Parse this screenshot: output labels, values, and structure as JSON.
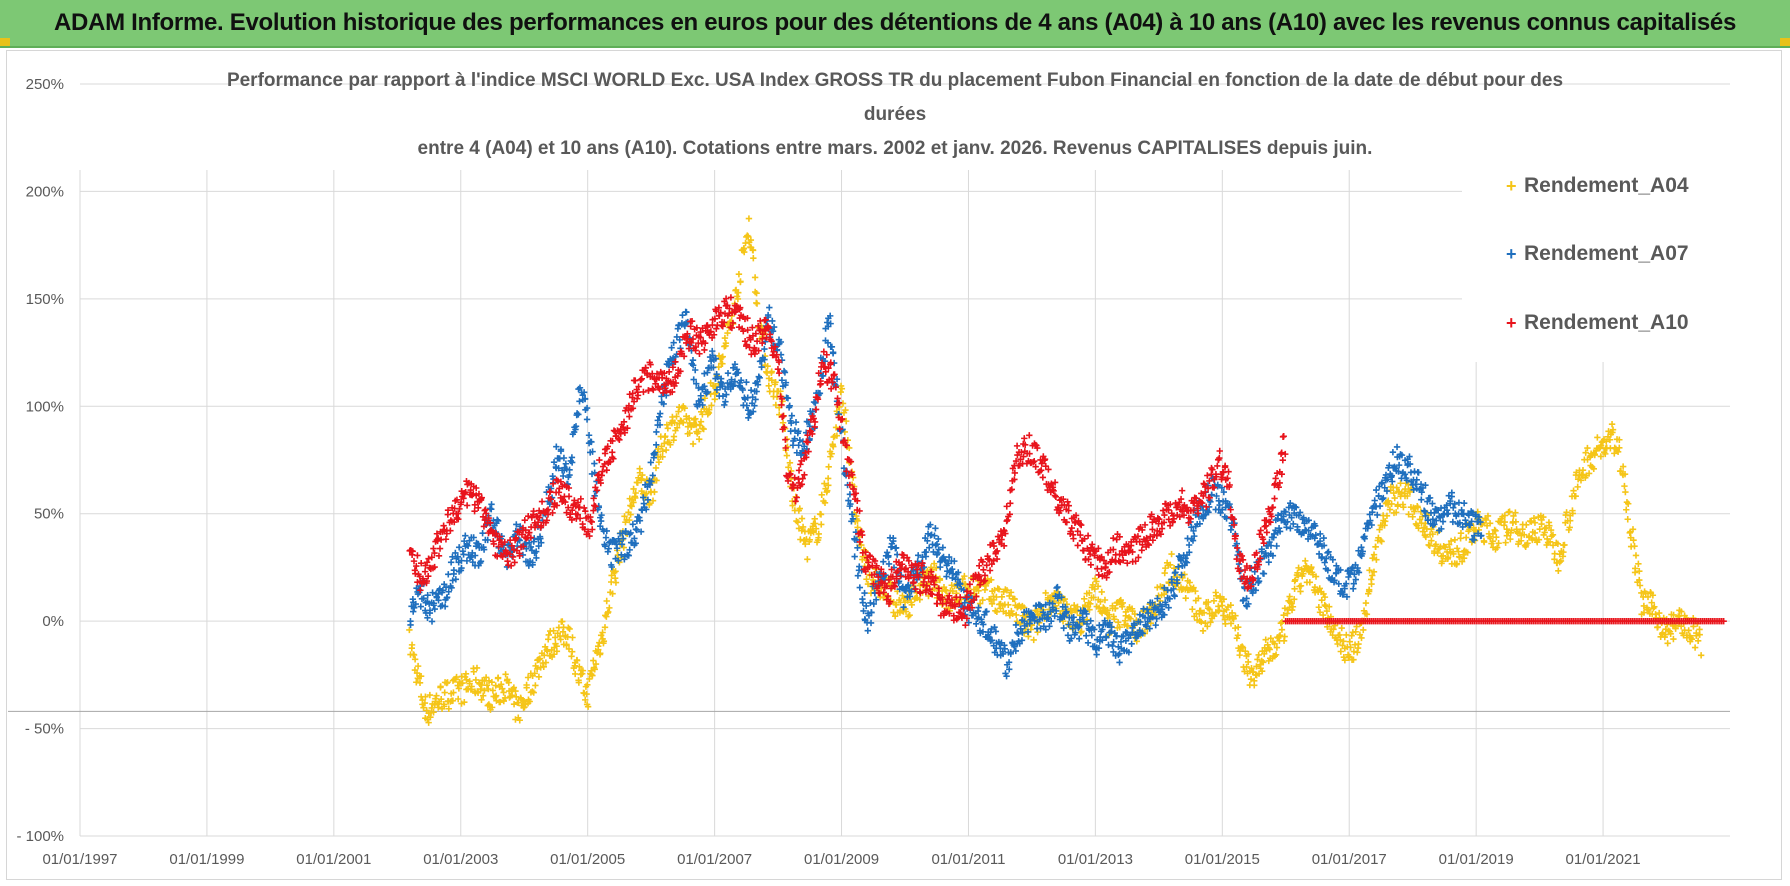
{
  "banner": {
    "title": "ADAM Informe. Evolution historique des performances en euros pour des détentions de 4 ans (A04) à 10 ans (A10) avec les revenus connus capitalisés"
  },
  "chart_data": {
    "type": "scatter",
    "title_lines": [
      "Performance par rapport à l'indice MSCI WORLD Exc. USA Index GROSS TR  du placement Fubon Financial  en fonction de la date de début pour des",
      "durées",
      "entre 4 (A04) et 10 ans (A10). Cotations entre mars. 2002 et janv. 2026. Revenus CAPITALISES depuis juin."
    ],
    "xlabel": "",
    "ylabel": "",
    "x_ticks": [
      "01/01/1997",
      "01/01/1999",
      "01/01/2001",
      "01/01/2003",
      "01/01/2005",
      "01/01/2007",
      "01/01/2009",
      "01/01/2011",
      "01/01/2013",
      "01/01/2015",
      "01/01/2017",
      "01/01/2019",
      "01/01/2021"
    ],
    "xlim": [
      1997.0,
      2023.0
    ],
    "y_ticks": [
      "250%",
      "200%",
      "150%",
      "100%",
      "50%",
      "0%",
      "- 50%",
      "- 100%"
    ],
    "ylim": [
      -100,
      250
    ],
    "legend_position": "top-right",
    "series": [
      {
        "name": "Rendement_A04",
        "color": "#f5c518",
        "points": [
          [
            2002.2,
            -10
          ],
          [
            2002.45,
            -42
          ],
          [
            2002.7,
            -35
          ],
          [
            2003.0,
            -32
          ],
          [
            2003.25,
            -28
          ],
          [
            2003.5,
            -35
          ],
          [
            2003.7,
            -30
          ],
          [
            2003.9,
            -42
          ],
          [
            2004.1,
            -30
          ],
          [
            2004.3,
            -15
          ],
          [
            2004.5,
            -8
          ],
          [
            2004.7,
            -5
          ],
          [
            2004.85,
            -25
          ],
          [
            2005.0,
            -35
          ],
          [
            2005.1,
            -20
          ],
          [
            2005.25,
            -5
          ],
          [
            2005.4,
            20
          ],
          [
            2005.6,
            45
          ],
          [
            2005.8,
            65
          ],
          [
            2006.0,
            60
          ],
          [
            2006.2,
            85
          ],
          [
            2006.45,
            95
          ],
          [
            2006.7,
            88
          ],
          [
            2006.9,
            100
          ],
          [
            2007.1,
            120
          ],
          [
            2007.3,
            145
          ],
          [
            2007.45,
            170
          ],
          [
            2007.55,
            185
          ],
          [
            2007.7,
            140
          ],
          [
            2007.85,
            115
          ],
          [
            2008.05,
            100
          ],
          [
            2008.25,
            55
          ],
          [
            2008.45,
            35
          ],
          [
            2008.65,
            45
          ],
          [
            2008.85,
            80
          ],
          [
            2009.0,
            105
          ],
          [
            2009.1,
            85
          ],
          [
            2009.25,
            40
          ],
          [
            2009.45,
            20
          ],
          [
            2009.7,
            15
          ],
          [
            2009.95,
            5
          ],
          [
            2010.2,
            15
          ],
          [
            2010.45,
            20
          ],
          [
            2010.7,
            10
          ],
          [
            2010.95,
            15
          ],
          [
            2011.2,
            15
          ],
          [
            2011.5,
            10
          ],
          [
            2011.75,
            5
          ],
          [
            2012.0,
            -5
          ],
          [
            2012.25,
            10
          ],
          [
            2012.5,
            5
          ],
          [
            2012.75,
            0
          ],
          [
            2013.0,
            15
          ],
          [
            2013.2,
            0
          ],
          [
            2013.45,
            5
          ],
          [
            2013.7,
            -5
          ],
          [
            2013.95,
            10
          ],
          [
            2014.2,
            25
          ],
          [
            2014.45,
            15
          ],
          [
            2014.7,
            0
          ],
          [
            2014.95,
            10
          ],
          [
            2015.2,
            0
          ],
          [
            2015.35,
            -20
          ],
          [
            2015.5,
            -25
          ],
          [
            2015.7,
            -15
          ],
          [
            2015.9,
            -10
          ],
          [
            2016.1,
            10
          ],
          [
            2016.3,
            25
          ],
          [
            2016.55,
            10
          ],
          [
            2016.8,
            -5
          ],
          [
            2017.0,
            -15
          ],
          [
            2017.2,
            -5
          ],
          [
            2017.4,
            30
          ],
          [
            2017.6,
            55
          ],
          [
            2017.85,
            60
          ],
          [
            2018.1,
            50
          ],
          [
            2018.3,
            40
          ],
          [
            2018.55,
            30
          ],
          [
            2018.8,
            35
          ],
          [
            2019.05,
            45
          ],
          [
            2019.3,
            40
          ],
          [
            2019.55,
            45
          ],
          [
            2019.8,
            40
          ],
          [
            2020.05,
            45
          ],
          [
            2020.3,
            30
          ],
          [
            2020.55,
            60
          ],
          [
            2020.75,
            75
          ],
          [
            2020.95,
            80
          ],
          [
            2021.15,
            85
          ],
          [
            2021.3,
            75
          ],
          [
            2021.45,
            40
          ],
          [
            2021.6,
            10
          ],
          [
            2021.8,
            5
          ],
          [
            2022.0,
            -5
          ],
          [
            2022.2,
            0
          ],
          [
            2022.4,
            -5
          ],
          [
            2022.55,
            -10
          ]
        ]
      },
      {
        "name": "Rendement_A07",
        "color": "#1f6fbe",
        "points": [
          [
            2002.2,
            0
          ],
          [
            2002.35,
            15
          ],
          [
            2002.5,
            5
          ],
          [
            2002.7,
            10
          ],
          [
            2002.9,
            25
          ],
          [
            2003.1,
            35
          ],
          [
            2003.3,
            30
          ],
          [
            2003.5,
            50
          ],
          [
            2003.7,
            30
          ],
          [
            2003.9,
            40
          ],
          [
            2004.1,
            30
          ],
          [
            2004.3,
            45
          ],
          [
            2004.5,
            75
          ],
          [
            2004.7,
            70
          ],
          [
            2004.9,
            110
          ],
          [
            2005.05,
            80
          ],
          [
            2005.2,
            45
          ],
          [
            2005.35,
            30
          ],
          [
            2005.55,
            35
          ],
          [
            2005.75,
            40
          ],
          [
            2005.95,
            60
          ],
          [
            2006.15,
            100
          ],
          [
            2006.35,
            125
          ],
          [
            2006.55,
            140
          ],
          [
            2006.75,
            100
          ],
          [
            2006.95,
            120
          ],
          [
            2007.15,
            105
          ],
          [
            2007.35,
            115
          ],
          [
            2007.55,
            100
          ],
          [
            2007.7,
            110
          ],
          [
            2007.85,
            140
          ],
          [
            2008.0,
            130
          ],
          [
            2008.2,
            90
          ],
          [
            2008.4,
            80
          ],
          [
            2008.6,
            100
          ],
          [
            2008.8,
            140
          ],
          [
            2008.95,
            100
          ],
          [
            2009.1,
            60
          ],
          [
            2009.25,
            30
          ],
          [
            2009.4,
            0
          ],
          [
            2009.6,
            20
          ],
          [
            2009.8,
            35
          ],
          [
            2010.0,
            10
          ],
          [
            2010.2,
            25
          ],
          [
            2010.4,
            40
          ],
          [
            2010.6,
            30
          ],
          [
            2010.8,
            20
          ],
          [
            2011.0,
            5
          ],
          [
            2011.25,
            0
          ],
          [
            2011.45,
            -10
          ],
          [
            2011.6,
            -20
          ],
          [
            2011.8,
            -5
          ],
          [
            2012.0,
            5
          ],
          [
            2012.2,
            0
          ],
          [
            2012.4,
            10
          ],
          [
            2012.6,
            -5
          ],
          [
            2012.8,
            0
          ],
          [
            2013.0,
            -10
          ],
          [
            2013.2,
            -5
          ],
          [
            2013.4,
            -15
          ],
          [
            2013.6,
            -5
          ],
          [
            2013.8,
            0
          ],
          [
            2014.0,
            5
          ],
          [
            2014.2,
            15
          ],
          [
            2014.4,
            30
          ],
          [
            2014.6,
            50
          ],
          [
            2014.85,
            60
          ],
          [
            2015.05,
            55
          ],
          [
            2015.2,
            40
          ],
          [
            2015.35,
            10
          ],
          [
            2015.5,
            20
          ],
          [
            2015.7,
            30
          ],
          [
            2015.9,
            45
          ],
          [
            2016.1,
            50
          ],
          [
            2016.3,
            45
          ],
          [
            2016.5,
            40
          ],
          [
            2016.7,
            25
          ],
          [
            2016.9,
            15
          ],
          [
            2017.1,
            20
          ],
          [
            2017.3,
            45
          ],
          [
            2017.55,
            65
          ],
          [
            2017.75,
            75
          ],
          [
            2017.95,
            70
          ],
          [
            2018.15,
            60
          ],
          [
            2018.35,
            45
          ],
          [
            2018.55,
            55
          ],
          [
            2018.75,
            50
          ],
          [
            2018.95,
            45
          ],
          [
            2019.1,
            40
          ]
        ]
      },
      {
        "name": "Rendement_A10",
        "color": "#e8141c",
        "points": [
          [
            2002.2,
            35
          ],
          [
            2002.35,
            20
          ],
          [
            2002.5,
            25
          ],
          [
            2002.7,
            40
          ],
          [
            2002.9,
            50
          ],
          [
            2003.1,
            60
          ],
          [
            2003.3,
            55
          ],
          [
            2003.5,
            40
          ],
          [
            2003.7,
            30
          ],
          [
            2003.9,
            35
          ],
          [
            2004.1,
            45
          ],
          [
            2004.3,
            50
          ],
          [
            2004.5,
            60
          ],
          [
            2004.7,
            55
          ],
          [
            2004.9,
            50
          ],
          [
            2005.05,
            45
          ],
          [
            2005.2,
            70
          ],
          [
            2005.4,
            80
          ],
          [
            2005.6,
            95
          ],
          [
            2005.8,
            110
          ],
          [
            2006.0,
            115
          ],
          [
            2006.2,
            110
          ],
          [
            2006.4,
            115
          ],
          [
            2006.6,
            135
          ],
          [
            2006.8,
            130
          ],
          [
            2007.0,
            140
          ],
          [
            2007.2,
            145
          ],
          [
            2007.4,
            140
          ],
          [
            2007.6,
            130
          ],
          [
            2007.8,
            135
          ],
          [
            2008.0,
            120
          ],
          [
            2008.15,
            70
          ],
          [
            2008.3,
            60
          ],
          [
            2008.5,
            85
          ],
          [
            2008.7,
            120
          ],
          [
            2008.9,
            110
          ],
          [
            2009.05,
            80
          ],
          [
            2009.2,
            60
          ],
          [
            2009.35,
            30
          ],
          [
            2009.55,
            20
          ],
          [
            2009.75,
            15
          ],
          [
            2009.95,
            25
          ],
          [
            2010.15,
            20
          ],
          [
            2010.35,
            20
          ],
          [
            2010.55,
            10
          ],
          [
            2010.75,
            5
          ],
          [
            2010.95,
            5
          ],
          [
            2011.15,
            20
          ],
          [
            2011.35,
            30
          ],
          [
            2011.55,
            40
          ],
          [
            2011.75,
            75
          ],
          [
            2011.95,
            80
          ],
          [
            2012.15,
            75
          ],
          [
            2012.35,
            60
          ],
          [
            2012.55,
            50
          ],
          [
            2012.75,
            40
          ],
          [
            2012.95,
            30
          ],
          [
            2013.15,
            25
          ],
          [
            2013.35,
            35
          ],
          [
            2013.55,
            30
          ],
          [
            2013.75,
            40
          ],
          [
            2013.95,
            45
          ],
          [
            2014.15,
            50
          ],
          [
            2014.35,
            55
          ],
          [
            2014.55,
            50
          ],
          [
            2014.75,
            60
          ],
          [
            2014.95,
            75
          ],
          [
            2015.1,
            65
          ],
          [
            2015.25,
            25
          ],
          [
            2015.45,
            20
          ],
          [
            2015.65,
            40
          ],
          [
            2015.85,
            60
          ],
          [
            2016.0,
            85
          ]
        ]
      },
      {
        "name": "Rendement_A10 (plateau)",
        "color": "#e8141c",
        "legend": false,
        "flat_segment": {
          "x_start": 2016.0,
          "x_end": 2022.9,
          "y": 0
        }
      }
    ]
  }
}
